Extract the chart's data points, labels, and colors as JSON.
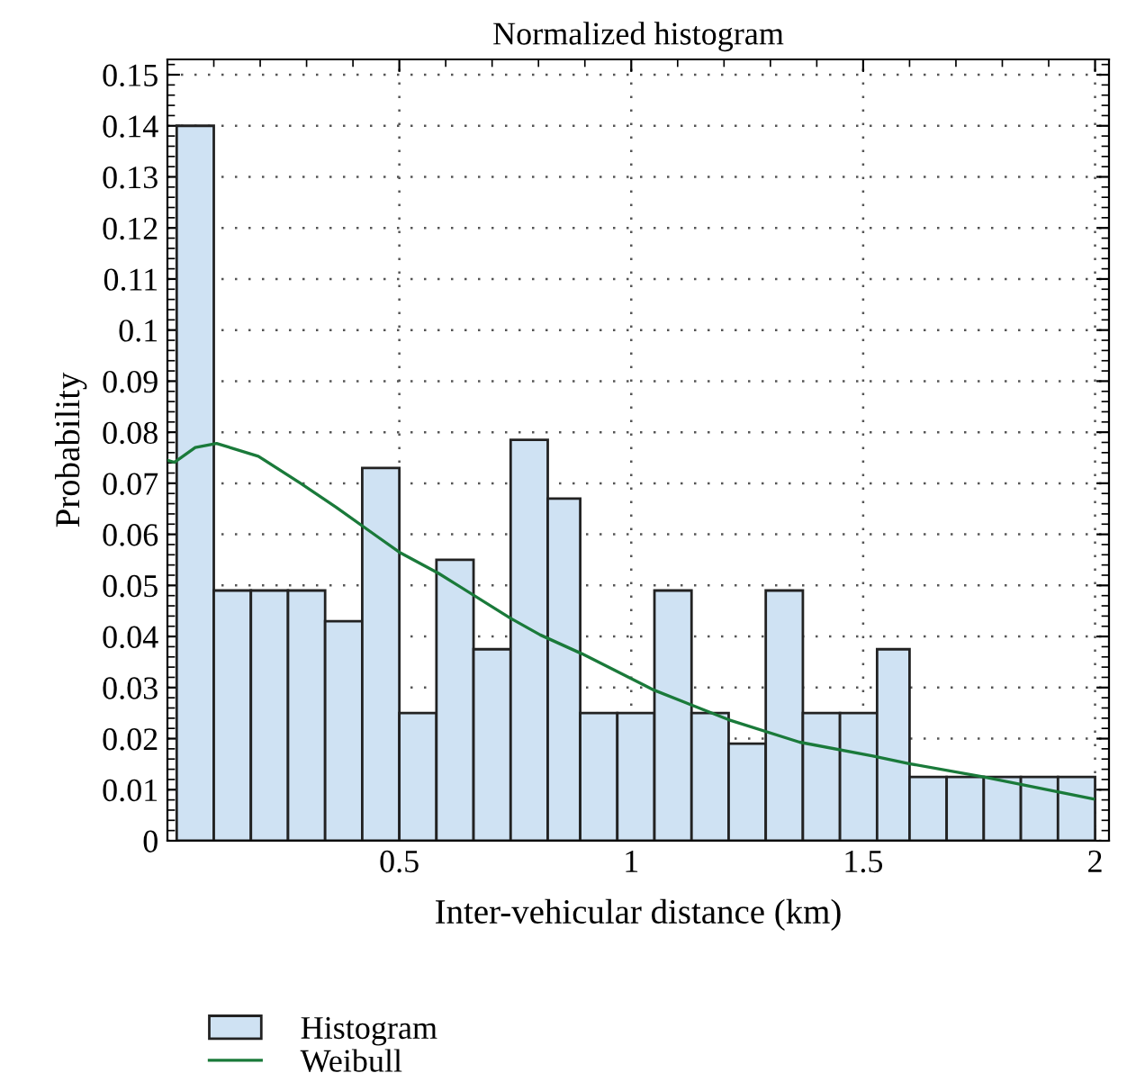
{
  "chart_data": {
    "type": "histogram",
    "title": "Normalized histogram",
    "xlabel": "Inter-vehicular distance (km)",
    "ylabel": "Probability",
    "bins": [
      0.02,
      0.1,
      0.18,
      0.26,
      0.34,
      0.42,
      0.5,
      0.58,
      0.66,
      0.74,
      0.82,
      0.89,
      0.97,
      1.05,
      1.13,
      1.21,
      1.29,
      1.37,
      1.45,
      1.53,
      1.6,
      1.68,
      1.76,
      1.84,
      1.92,
      2.0
    ],
    "series": [
      {
        "name": "Histogram",
        "color": "#cfe2f3",
        "values": [
          0.14,
          0.049,
          0.049,
          0.049,
          0.043,
          0.073,
          0.025,
          0.055,
          0.0375,
          0.0785,
          0.067,
          0.025,
          0.025,
          0.049,
          0.025,
          0.019,
          0.049,
          0.025,
          0.025,
          0.0375,
          0.0125,
          0.0125,
          0.0125,
          0.0125,
          0.0125
        ]
      },
      {
        "name": "Weibull",
        "type": "line",
        "color": "#1a7a3a",
        "x": [
          0.0,
          0.015,
          0.06,
          0.106,
          0.196,
          0.287,
          0.364,
          0.455,
          0.5,
          0.584,
          0.739,
          0.804,
          0.894,
          1.049,
          1.21,
          1.363,
          1.521,
          1.599,
          1.76,
          1.996
        ],
        "values": [
          0.0745,
          0.0741,
          0.077,
          0.0778,
          0.0753,
          0.07,
          0.0653,
          0.0594,
          0.0565,
          0.0524,
          0.0436,
          0.0403,
          0.0366,
          0.0295,
          0.0237,
          0.0193,
          0.0166,
          0.0151,
          0.0125,
          0.0082
        ]
      }
    ],
    "xlim": [
      0.0,
      2.03
    ],
    "ylim": [
      0,
      0.153
    ],
    "xticks": [
      0.5,
      1,
      1.5,
      2
    ],
    "yticks": [
      0,
      0.01,
      0.02,
      0.03,
      0.04,
      0.05,
      0.06,
      0.07,
      0.08,
      0.09,
      0.1,
      0.11,
      0.12,
      0.13,
      0.14,
      0.15
    ],
    "grid": true,
    "legend": "bottom left"
  }
}
